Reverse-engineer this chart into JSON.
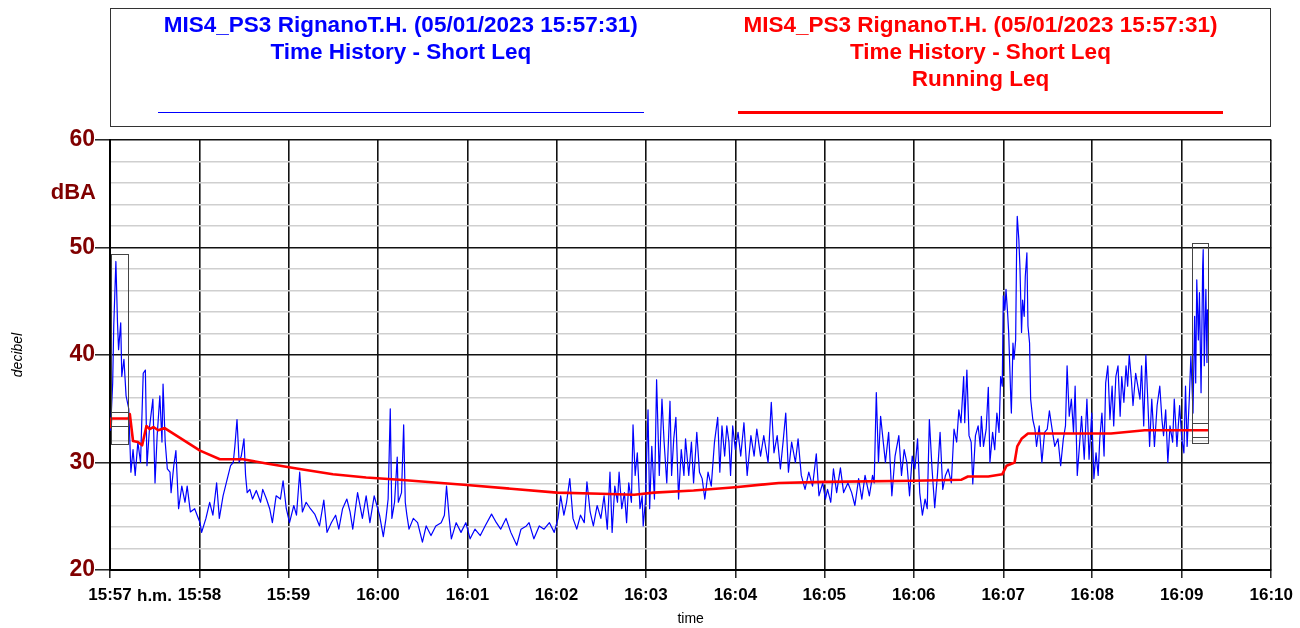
{
  "chart_data": {
    "type": "line",
    "xlabel": "time",
    "ylabel": "decibel",
    "annotations": [
      "dBA",
      "h.m."
    ],
    "xlim": [
      15.95,
      16.1667
    ],
    "xticks": [
      {
        "value": 15.95,
        "label": "15:57"
      },
      {
        "value": 15.9667,
        "label": "15:58"
      },
      {
        "value": 15.9833,
        "label": "15:59"
      },
      {
        "value": 16.0,
        "label": "16:00"
      },
      {
        "value": 16.0167,
        "label": "16:01"
      },
      {
        "value": 16.0333,
        "label": "16:02"
      },
      {
        "value": 16.05,
        "label": "16:03"
      },
      {
        "value": 16.0667,
        "label": "16:04"
      },
      {
        "value": 16.0833,
        "label": "16:05"
      },
      {
        "value": 16.1,
        "label": "16:06"
      },
      {
        "value": 16.1167,
        "label": "16:07"
      },
      {
        "value": 16.1333,
        "label": "16:08"
      },
      {
        "value": 16.15,
        "label": "16:09"
      },
      {
        "value": 16.1667,
        "label": "16:10"
      }
    ],
    "ylim": [
      20,
      60
    ],
    "yticks": [
      20,
      {
        "value": 22,
        "label": null
      },
      {
        "value": 24,
        "label": null
      },
      {
        "value": 26,
        "label": null
      },
      {
        "value": 28,
        "label": null
      },
      30,
      {
        "value": 32,
        "label": null
      },
      {
        "value": 34,
        "label": null
      },
      {
        "value": 36,
        "label": null
      },
      {
        "value": 38,
        "label": null
      },
      40,
      {
        "value": 42,
        "label": null
      },
      {
        "value": 44,
        "label": null
      },
      {
        "value": 46,
        "label": null
      },
      {
        "value": 48,
        "label": null
      },
      50,
      {
        "value": 52,
        "label": null
      },
      {
        "value": 54,
        "label": null
      },
      {
        "value": 56,
        "label": null
      },
      {
        "value": 58,
        "label": null
      },
      60
    ],
    "grid": true,
    "legend": "top",
    "marker": "none",
    "series": [
      {
        "name": "MIS4_PS3 RignanoT.H. (05/01/2023 15:57:31)\nTime History - Short Leq",
        "color": "#0000ff",
        "x": [
          15.9501,
          15.9505,
          15.9507,
          15.9511,
          15.9514,
          15.9516,
          15.952,
          15.9522,
          15.9526,
          15.953,
          15.9535,
          15.9539,
          15.9543,
          15.9547,
          15.9552,
          15.9557,
          15.9562,
          15.9566,
          15.9569,
          15.9574,
          15.958,
          15.9584,
          15.9588,
          15.9593,
          15.9597,
          15.9599,
          15.9603,
          15.9607,
          15.9612,
          15.9614,
          15.9619,
          15.9623,
          15.9628,
          15.9634,
          15.964,
          15.9644,
          15.965,
          15.9658,
          15.9668,
          15.9671,
          15.9679,
          15.9686,
          15.9692,
          15.9699,
          15.9704,
          15.9711,
          15.9717,
          15.9725,
          15.973,
          15.9733,
          15.9737,
          15.9741,
          15.9745,
          15.975,
          15.9753,
          15.9756,
          15.9761,
          15.9766,
          15.9773,
          15.9781,
          15.9785,
          15.9792,
          15.9798,
          15.9803,
          15.981,
          15.9818,
          15.9823,
          15.9829,
          15.9835,
          15.9843,
          15.9848,
          15.9854,
          15.9859,
          15.9866,
          15.9874,
          15.9882,
          15.9891,
          15.9899,
          15.9905,
          15.9913,
          15.9921,
          15.9927,
          15.9934,
          15.9942,
          15.9948,
          15.9953,
          15.9962,
          15.9971,
          15.9978,
          15.9985,
          15.9993,
          16.0003,
          16.001,
          16.0015,
          16.0019,
          16.0023,
          16.0026,
          16.0031,
          16.0036,
          16.0038,
          16.0044,
          16.0048,
          16.0051,
          16.0054,
          16.0058,
          16.0066,
          16.0074,
          16.0083,
          16.009,
          16.0099,
          16.0108,
          16.0118,
          16.0124,
          16.0128,
          16.0133,
          16.0137,
          16.0146,
          16.0155,
          16.0164,
          16.0172,
          16.0181,
          16.0191,
          16.02,
          16.0212,
          16.0221,
          16.0229,
          16.0239,
          16.0248,
          16.0259,
          16.0267,
          16.0277,
          16.0282,
          16.0291,
          16.0301,
          16.031,
          16.032,
          16.0329,
          16.0336,
          16.0341,
          16.0347,
          16.0352,
          16.0358,
          16.0364,
          16.0371,
          16.0378,
          16.0385,
          16.039,
          16.0396,
          16.0402,
          16.0409,
          16.0416,
          16.0422,
          16.0428,
          16.0433,
          16.0437,
          16.0442,
          16.0447,
          16.045,
          16.0455,
          16.046,
          16.0464,
          16.0468,
          16.0473,
          16.0476,
          16.048,
          16.0484,
          16.0489,
          16.0493,
          16.0495,
          16.0499,
          16.0504,
          16.0507,
          16.0511,
          16.0516,
          16.052,
          16.0525,
          16.053,
          16.0534,
          16.0539,
          16.0545,
          16.0548,
          16.0552,
          16.0556,
          16.0561,
          16.0566,
          16.0571,
          16.0574,
          16.058,
          16.0585,
          16.0589,
          16.0595,
          16.06,
          16.0605,
          16.061,
          16.0616,
          16.0622,
          16.0628,
          16.0634,
          16.0638,
          16.0642,
          16.0647,
          16.0651,
          16.0655,
          16.0658,
          16.0662,
          16.0667,
          16.0672,
          16.0677,
          16.0683,
          16.0689,
          16.0696,
          16.0702,
          16.0707,
          16.0714,
          16.072,
          16.0728,
          16.0734,
          16.0739,
          16.0745,
          16.0751,
          16.0756,
          16.0761,
          16.0766,
          16.0772,
          16.0779,
          16.0784,
          16.079,
          16.0797,
          16.0804,
          16.0811,
          16.0818,
          16.0823,
          16.083,
          16.0835,
          16.0839,
          16.0845,
          16.085,
          16.0856,
          16.0863,
          16.0869,
          16.0877,
          16.0884,
          16.089,
          16.0897,
          16.0903,
          16.0909,
          16.0917,
          16.0923,
          16.0926,
          16.093,
          16.0934,
          16.0938,
          16.0943,
          16.0947,
          16.0953,
          16.0959,
          16.0965,
          16.0972,
          16.0977,
          16.0982,
          16.0987,
          16.0992,
          16.0997,
          16.1002,
          16.1007,
          16.1011,
          16.1016,
          16.1021,
          16.1025,
          16.1029,
          16.1034,
          16.1039,
          16.1044,
          16.1049,
          16.1054,
          16.1059,
          16.1064,
          16.107,
          16.1075,
          16.108,
          16.1084,
          16.1088,
          16.1093,
          16.1095,
          16.1099,
          16.1103,
          16.1107,
          16.111,
          16.1115,
          16.112,
          16.1124,
          16.1126,
          16.113,
          16.1135,
          16.1139,
          16.1142,
          16.1147,
          16.1151,
          16.1155,
          16.1159,
          16.1162,
          16.1165,
          16.1167,
          16.117,
          16.1172,
          16.1175,
          16.1177,
          16.1181,
          16.1182,
          16.1185,
          16.1187,
          16.119,
          16.1192,
          16.1193,
          16.1196,
          16.1198,
          16.1201,
          16.1203,
          16.1206,
          16.1208,
          16.1211,
          16.1213,
          16.1216,
          16.1218,
          16.1222,
          16.1226,
          16.1229,
          16.1234,
          16.1239,
          16.1244,
          16.1249,
          16.1253,
          16.1258,
          16.1263,
          16.1269,
          16.1274,
          16.1279,
          16.1283,
          16.1286,
          16.129,
          16.1294,
          16.1298,
          16.1301,
          16.1305,
          16.1309,
          16.1313,
          16.1318,
          16.1323,
          16.1327,
          16.1332,
          16.1336,
          16.134,
          16.1344,
          16.1347,
          16.1351,
          16.1355,
          16.1358,
          16.1362,
          16.1366,
          16.137,
          16.1373,
          16.1377,
          16.1381,
          16.1385,
          16.1388,
          16.1392,
          16.1396,
          16.1399,
          16.1402,
          16.1406,
          16.1409,
          16.1414,
          16.1418,
          16.1422,
          16.1425,
          16.1429,
          16.1433,
          16.1437,
          16.144,
          16.1444,
          16.1449,
          16.1454,
          16.1459,
          16.1463,
          16.1466,
          16.147,
          16.1474,
          16.1478,
          16.1483,
          16.1486,
          16.1491,
          16.1496,
          16.15,
          16.1504,
          16.1507,
          16.151,
          16.1514,
          16.1517,
          16.1521,
          16.1524,
          16.1526,
          16.1528,
          16.1531,
          16.1533,
          16.1536,
          16.1539,
          16.154,
          16.1542,
          16.1545,
          16.1547,
          16.1548
        ],
        "values": [
          33.0,
          37.4,
          42.7,
          48.7,
          43.0,
          40.5,
          43.0,
          38.0,
          39.6,
          36.2,
          35.0,
          29.1,
          31.2,
          28.8,
          31.9,
          30.0,
          38.3,
          38.6,
          29.7,
          33.4,
          35.9,
          28.1,
          32.5,
          36.2,
          31.9,
          37.3,
          31.9,
          29.4,
          29.1,
          27.2,
          29.7,
          31.1,
          25.7,
          27.8,
          26.3,
          27.8,
          25.4,
          25.7,
          24.4,
          23.5,
          24.8,
          26.3,
          25.1,
          28.1,
          24.8,
          26.9,
          28.1,
          29.7,
          30.0,
          31.5,
          34.0,
          30.0,
          30.6,
          32.2,
          28.8,
          27.2,
          27.5,
          26.6,
          27.4,
          26.3,
          27.5,
          26.6,
          25.7,
          24.4,
          26.9,
          26.6,
          28.3,
          25.7,
          24.4,
          26.0,
          25.1,
          29.1,
          25.4,
          26.3,
          25.7,
          25.2,
          24.1,
          26.5,
          23.5,
          24.4,
          25.1,
          23.8,
          25.7,
          26.6,
          25.4,
          23.8,
          27.2,
          24.8,
          26.9,
          24.4,
          26.9,
          25.1,
          23.1,
          24.8,
          26.6,
          35.0,
          24.8,
          26.3,
          30.5,
          26.3,
          27.2,
          33.5,
          26.3,
          25.1,
          23.8,
          24.8,
          24.4,
          22.6,
          24.1,
          23.2,
          24.1,
          24.4,
          25.1,
          27.8,
          24.8,
          22.9,
          24.4,
          23.5,
          24.4,
          22.9,
          23.8,
          23.2,
          24.1,
          25.2,
          24.4,
          23.8,
          24.8,
          23.5,
          22.3,
          23.8,
          24.1,
          24.4,
          22.9,
          24.1,
          23.8,
          24.4,
          23.5,
          24.8,
          26.9,
          25.1,
          26.3,
          28.5,
          24.8,
          23.8,
          25.1,
          24.4,
          28.2,
          25.4,
          24.1,
          26.0,
          24.8,
          26.9,
          23.8,
          29.1,
          23.5,
          27.8,
          26.3,
          29.1,
          25.7,
          27.2,
          24.4,
          28.1,
          26.3,
          33.5,
          28.8,
          30.9,
          25.7,
          26.9,
          24.1,
          26.3,
          34.9,
          25.7,
          31.5,
          26.6,
          37.7,
          28.8,
          35.9,
          31.9,
          28.1,
          35.7,
          28.8,
          32.2,
          34.2,
          26.6,
          31.2,
          28.8,
          32.2,
          28.8,
          31.9,
          28.1,
          32.8,
          29.1,
          28.5,
          26.6,
          29.1,
          27.8,
          31.9,
          34.2,
          29.1,
          33.4,
          30.6,
          33.4,
          31.9,
          28.8,
          33.4,
          31.2,
          32.8,
          30.6,
          33.7,
          28.8,
          32.5,
          30.6,
          33.1,
          30.6,
          32.5,
          30.0,
          35.6,
          30.9,
          32.5,
          29.4,
          31.9,
          34.6,
          29.1,
          31.9,
          30.0,
          32.2,
          28.8,
          27.5,
          29.1,
          27.8,
          30.8,
          26.9,
          28.1,
          26.6,
          27.5,
          26.3,
          29.4,
          27.2,
          29.5,
          27.2,
          28.1,
          27.2,
          26.0,
          28.5,
          26.6,
          28.8,
          26.9,
          28.8,
          28.1,
          36.5,
          30.0,
          34.3,
          31.9,
          30.0,
          32.8,
          26.9,
          30.6,
          32.5,
          28.8,
          31.2,
          30.0,
          26.9,
          30.6,
          29.4,
          32.2,
          27.2,
          25.1,
          26.6,
          25.7,
          34.0,
          29.4,
          25.8,
          28.8,
          32.8,
          27.5,
          28.8,
          29.4,
          28.1,
          33.1,
          31.9,
          34.9,
          33.7,
          38.0,
          33.7,
          38.6,
          32.5,
          31.9,
          28.0,
          32.5,
          33.4,
          31.5,
          34.3,
          31.5,
          33.1,
          37.0,
          30.0,
          32.8,
          31.2,
          34.6,
          32.8,
          38.0,
          37.1,
          45.5,
          44.2,
          46.1,
          43.9,
          42.1,
          35.9,
          34.6,
          41.1,
          39.6,
          41.4,
          50.7,
          52.9,
          50.7,
          48.2,
          42.1,
          45.1,
          43.6,
          47.3,
          49.5,
          42.7,
          41.1,
          35.9,
          34.0,
          33.1,
          31.5,
          33.4,
          30.0,
          32.8,
          33.1,
          34.8,
          33.1,
          31.5,
          32.2,
          29.7,
          32.2,
          33.4,
          39.0,
          34.3,
          35.9,
          32.8,
          37.1,
          28.8,
          31.5,
          34.3,
          30.3,
          35.9,
          30.3,
          34.6,
          28.5,
          30.9,
          28.8,
          32.2,
          34.6,
          30.6,
          37.4,
          39.0,
          34.0,
          37.1,
          33.4,
          38.0,
          39.0,
          34.3,
          38.0,
          35.6,
          39.0,
          37.1,
          40.0,
          37.7,
          35.3,
          38.3,
          37.1,
          35.9,
          39.0,
          33.4,
          40.0,
          35.3,
          31.5,
          35.9,
          31.5,
          35.3,
          37.1,
          34.0,
          32.5,
          34.9,
          30.0,
          33.4,
          31.9,
          35.9,
          31.5,
          35.3,
          32.2,
          30.9,
          37.1,
          31.5,
          35.9,
          39.9,
          34.6,
          43.6,
          37.4,
          47.0,
          41.4,
          45.8,
          36.5,
          48.2,
          49.8,
          39.0,
          46.1,
          39.3,
          44.2
        ]
      },
      {
        "name": "MIS4_PS3 RignanoT.H. (05/01/2023 15:57:31)\nTime History - Short Leq\nRunning Leq",
        "color": "#ff0000",
        "x": [
          15.9501,
          15.9502,
          15.9535,
          15.9537,
          15.9543,
          15.9552,
          15.956,
          15.9568,
          15.9574,
          15.9581,
          15.959,
          15.9602,
          15.9624,
          15.9668,
          15.9705,
          15.9748,
          15.9792,
          15.9854,
          15.9916,
          15.9978,
          16.004,
          16.0166,
          16.0334,
          16.0416,
          16.0478,
          16.0515,
          16.0589,
          16.0667,
          16.0748,
          16.0833,
          16.1,
          16.1089,
          16.1101,
          16.1139,
          16.1165,
          16.1173,
          16.1188,
          16.1193,
          16.1201,
          16.1213,
          16.1368,
          16.1431,
          16.1548
        ],
        "values": [
          33.3,
          34.1,
          34.1,
          34.5,
          32.0,
          31.9,
          31.6,
          33.4,
          33.1,
          33.3,
          33.0,
          33.2,
          32.5,
          31.1,
          30.3,
          30.3,
          29.9,
          29.4,
          28.9,
          28.6,
          28.4,
          27.9,
          27.2,
          27.1,
          27.0,
          27.2,
          27.4,
          27.7,
          28.1,
          28.2,
          28.3,
          28.4,
          28.7,
          28.7,
          28.9,
          29.7,
          30.0,
          31.5,
          32.2,
          32.7,
          32.7,
          33.0,
          33.0
        ]
      }
    ]
  }
}
